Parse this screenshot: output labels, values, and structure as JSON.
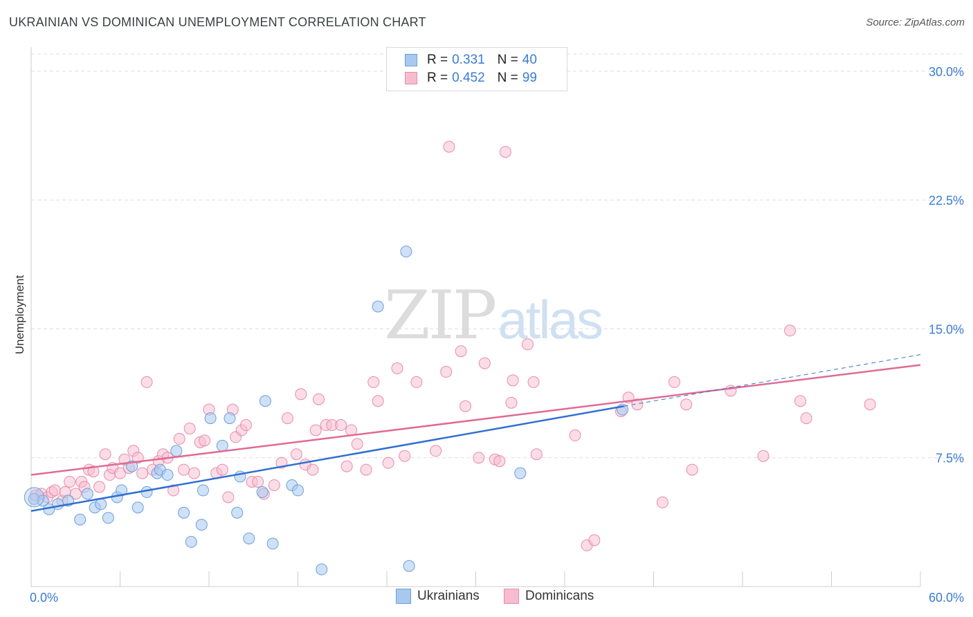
{
  "title": "UKRAINIAN VS DOMINICAN UNEMPLOYMENT CORRELATION CHART",
  "source": "Source: ZipAtlas.com",
  "watermark": {
    "zip": "ZIP",
    "atlas": "atlas"
  },
  "legend": {
    "r_label": "R =",
    "n_label": "N =",
    "rows": [
      {
        "r": "0.331",
        "n": "40"
      },
      {
        "r": "0.452",
        "n": "99"
      }
    ]
  },
  "colors": {
    "ukrainians_fill": "#a8c8f0",
    "ukrainians_stroke": "#6a9fd8",
    "ukrainians_line": "#2f6fd0",
    "dominicans_fill": "#f7bcd0",
    "dominicans_stroke": "#e88aaa",
    "dominicans_line": "#e06a94",
    "axis_text": "#3a7bd5",
    "grid": "#dddddd"
  },
  "chart_data": {
    "type": "scatter",
    "title": "UKRAINIAN VS DOMINICAN UNEMPLOYMENT CORRELATION CHART",
    "xlabel": "",
    "ylabel": "Unemployment",
    "xlim": [
      0,
      60
    ],
    "ylim": [
      0,
      31
    ],
    "x_tick_labels": [
      "0.0%",
      "60.0%"
    ],
    "y_ticks": [
      7.5,
      15.0,
      22.5,
      30.0
    ],
    "y_tick_labels": [
      "7.5%",
      "15.0%",
      "22.5%",
      "30.0%"
    ],
    "grid": true,
    "series": [
      {
        "name": "Ukrainians",
        "r": 0.331,
        "n": 40,
        "trend": {
          "x": [
            0,
            40
          ],
          "y": [
            4.4,
            10.5
          ],
          "extended_dashed_to": [
            60,
            13.5
          ]
        },
        "points": [
          [
            0.2,
            5.1
          ],
          [
            0.8,
            5.0
          ],
          [
            1.2,
            4.5
          ],
          [
            1.8,
            4.8
          ],
          [
            2.5,
            5.0
          ],
          [
            3.3,
            3.9
          ],
          [
            3.8,
            5.4
          ],
          [
            4.3,
            4.6
          ],
          [
            4.7,
            4.8
          ],
          [
            5.2,
            4.0
          ],
          [
            5.8,
            5.2
          ],
          [
            6.1,
            5.6
          ],
          [
            6.8,
            7.0
          ],
          [
            7.2,
            4.6
          ],
          [
            7.8,
            5.5
          ],
          [
            8.5,
            6.6
          ],
          [
            8.7,
            6.8
          ],
          [
            9.2,
            6.5
          ],
          [
            9.8,
            7.9
          ],
          [
            10.3,
            4.3
          ],
          [
            10.8,
            2.6
          ],
          [
            11.5,
            3.6
          ],
          [
            11.6,
            5.6
          ],
          [
            12.1,
            9.8
          ],
          [
            12.9,
            8.2
          ],
          [
            13.4,
            9.8
          ],
          [
            13.9,
            4.3
          ],
          [
            14.1,
            6.4
          ],
          [
            14.7,
            2.8
          ],
          [
            15.6,
            5.5
          ],
          [
            15.8,
            10.8
          ],
          [
            16.3,
            2.5
          ],
          [
            17.6,
            5.9
          ],
          [
            18.0,
            5.6
          ],
          [
            19.6,
            1.0
          ],
          [
            23.4,
            16.3
          ],
          [
            25.3,
            19.5
          ],
          [
            25.5,
            1.2
          ],
          [
            33.0,
            6.6
          ],
          [
            39.9,
            10.3
          ]
        ]
      },
      {
        "name": "Dominicans",
        "r": 0.452,
        "n": 99,
        "trend": {
          "x": [
            0,
            60
          ],
          "y": [
            6.5,
            12.9
          ]
        },
        "points": [
          [
            0.3,
            5.3
          ],
          [
            0.7,
            5.4
          ],
          [
            1.1,
            5.2
          ],
          [
            1.4,
            5.5
          ],
          [
            1.6,
            5.6
          ],
          [
            2.1,
            5.0
          ],
          [
            2.3,
            5.5
          ],
          [
            2.6,
            6.1
          ],
          [
            3.0,
            5.4
          ],
          [
            3.4,
            6.1
          ],
          [
            3.6,
            5.8
          ],
          [
            3.9,
            6.8
          ],
          [
            4.2,
            6.7
          ],
          [
            4.6,
            5.8
          ],
          [
            5.0,
            7.7
          ],
          [
            5.3,
            6.5
          ],
          [
            5.5,
            6.9
          ],
          [
            6.0,
            6.6
          ],
          [
            6.3,
            7.4
          ],
          [
            6.6,
            6.9
          ],
          [
            6.9,
            7.9
          ],
          [
            7.2,
            7.5
          ],
          [
            7.5,
            6.6
          ],
          [
            7.8,
            11.9
          ],
          [
            8.2,
            6.8
          ],
          [
            8.6,
            7.3
          ],
          [
            8.9,
            7.7
          ],
          [
            9.2,
            7.5
          ],
          [
            9.6,
            5.6
          ],
          [
            10.0,
            8.6
          ],
          [
            10.3,
            6.8
          ],
          [
            10.7,
            9.2
          ],
          [
            11.0,
            6.6
          ],
          [
            11.4,
            8.4
          ],
          [
            11.7,
            8.5
          ],
          [
            12.0,
            10.3
          ],
          [
            12.5,
            6.6
          ],
          [
            12.9,
            6.8
          ],
          [
            13.3,
            5.2
          ],
          [
            13.6,
            10.3
          ],
          [
            13.8,
            8.7
          ],
          [
            14.2,
            9.1
          ],
          [
            14.5,
            9.4
          ],
          [
            14.9,
            6.1
          ],
          [
            15.3,
            6.1
          ],
          [
            15.7,
            5.4
          ],
          [
            16.4,
            5.9
          ],
          [
            16.9,
            7.2
          ],
          [
            17.3,
            9.8
          ],
          [
            17.9,
            7.7
          ],
          [
            18.2,
            11.2
          ],
          [
            18.5,
            7.1
          ],
          [
            19.0,
            6.8
          ],
          [
            19.2,
            9.1
          ],
          [
            19.4,
            10.9
          ],
          [
            19.9,
            9.4
          ],
          [
            20.3,
            9.4
          ],
          [
            20.9,
            9.4
          ],
          [
            21.3,
            7.0
          ],
          [
            21.6,
            9.1
          ],
          [
            22.0,
            8.3
          ],
          [
            22.6,
            6.8
          ],
          [
            23.1,
            11.9
          ],
          [
            23.4,
            10.8
          ],
          [
            24.1,
            7.2
          ],
          [
            24.7,
            12.7
          ],
          [
            25.2,
            7.6
          ],
          [
            26.0,
            11.9
          ],
          [
            27.3,
            7.9
          ],
          [
            28.0,
            12.5
          ],
          [
            28.2,
            25.6
          ],
          [
            29.0,
            13.7
          ],
          [
            29.3,
            10.5
          ],
          [
            30.2,
            7.5
          ],
          [
            30.6,
            13.0
          ],
          [
            31.3,
            7.4
          ],
          [
            31.6,
            7.3
          ],
          [
            32.0,
            25.3
          ],
          [
            32.4,
            10.7
          ],
          [
            32.5,
            12.0
          ],
          [
            33.5,
            14.1
          ],
          [
            33.9,
            11.9
          ],
          [
            34.1,
            7.7
          ],
          [
            36.7,
            8.8
          ],
          [
            37.5,
            2.4
          ],
          [
            38.0,
            2.7
          ],
          [
            39.8,
            10.2
          ],
          [
            40.3,
            11.0
          ],
          [
            40.9,
            10.6
          ],
          [
            42.6,
            4.9
          ],
          [
            43.4,
            11.9
          ],
          [
            44.2,
            10.6
          ],
          [
            44.6,
            6.8
          ],
          [
            47.2,
            11.4
          ],
          [
            49.4,
            7.6
          ],
          [
            51.2,
            14.9
          ],
          [
            51.9,
            10.8
          ],
          [
            52.3,
            9.8
          ],
          [
            56.6,
            10.6
          ]
        ]
      }
    ]
  },
  "bottom_legend": [
    "Ukrainians",
    "Dominicans"
  ]
}
